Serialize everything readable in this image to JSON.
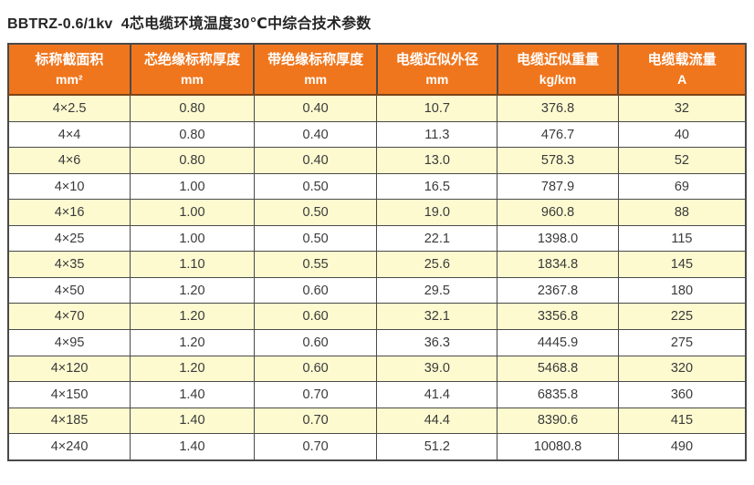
{
  "page": {
    "title": "BBTRZ-0.6/1kv  4芯电缆环境温度30℃中综合技术参数"
  },
  "colors": {
    "header_bg": "#F0761D",
    "header_text": "#FFFFFF",
    "row_alt_bg": "#FDFAD0",
    "row_bg": "#FFFFFF",
    "border": "#4A4A4A",
    "header_divider": "#7B4418",
    "cell_text": "#3A3A3A",
    "title_text": "#262626"
  },
  "table": {
    "columns": [
      {
        "label": "标称截面积",
        "unit": "mm²"
      },
      {
        "label": "芯绝缘标称厚度",
        "unit": "mm"
      },
      {
        "label": "带绝缘标称厚度",
        "unit": "mm"
      },
      {
        "label": "电缆近似外径",
        "unit": "mm"
      },
      {
        "label": "电缆近似重量",
        "unit": "kg/km"
      },
      {
        "label": "电缆载流量",
        "unit": "A"
      }
    ],
    "rows": [
      [
        "4×2.5",
        "0.80",
        "0.40",
        "10.7",
        "376.8",
        "32"
      ],
      [
        "4×4",
        "0.80",
        "0.40",
        "11.3",
        "476.7",
        "40"
      ],
      [
        "4×6",
        "0.80",
        "0.40",
        "13.0",
        "578.3",
        "52"
      ],
      [
        "4×10",
        "1.00",
        "0.50",
        "16.5",
        "787.9",
        "69"
      ],
      [
        "4×16",
        "1.00",
        "0.50",
        "19.0",
        "960.8",
        "88"
      ],
      [
        "4×25",
        "1.00",
        "0.50",
        "22.1",
        "1398.0",
        "115"
      ],
      [
        "4×35",
        "1.10",
        "0.55",
        "25.6",
        "1834.8",
        "145"
      ],
      [
        "4×50",
        "1.20",
        "0.60",
        "29.5",
        "2367.8",
        "180"
      ],
      [
        "4×70",
        "1.20",
        "0.60",
        "32.1",
        "3356.8",
        "225"
      ],
      [
        "4×95",
        "1.20",
        "0.60",
        "36.3",
        "4445.9",
        "275"
      ],
      [
        "4×120",
        "1.20",
        "0.60",
        "39.0",
        "5468.8",
        "320"
      ],
      [
        "4×150",
        "1.40",
        "0.70",
        "41.4",
        "6835.8",
        "360"
      ],
      [
        "4×185",
        "1.40",
        "0.70",
        "44.4",
        "8390.6",
        "415"
      ],
      [
        "4×240",
        "1.40",
        "0.70",
        "51.2",
        "10080.8",
        "490"
      ]
    ]
  }
}
